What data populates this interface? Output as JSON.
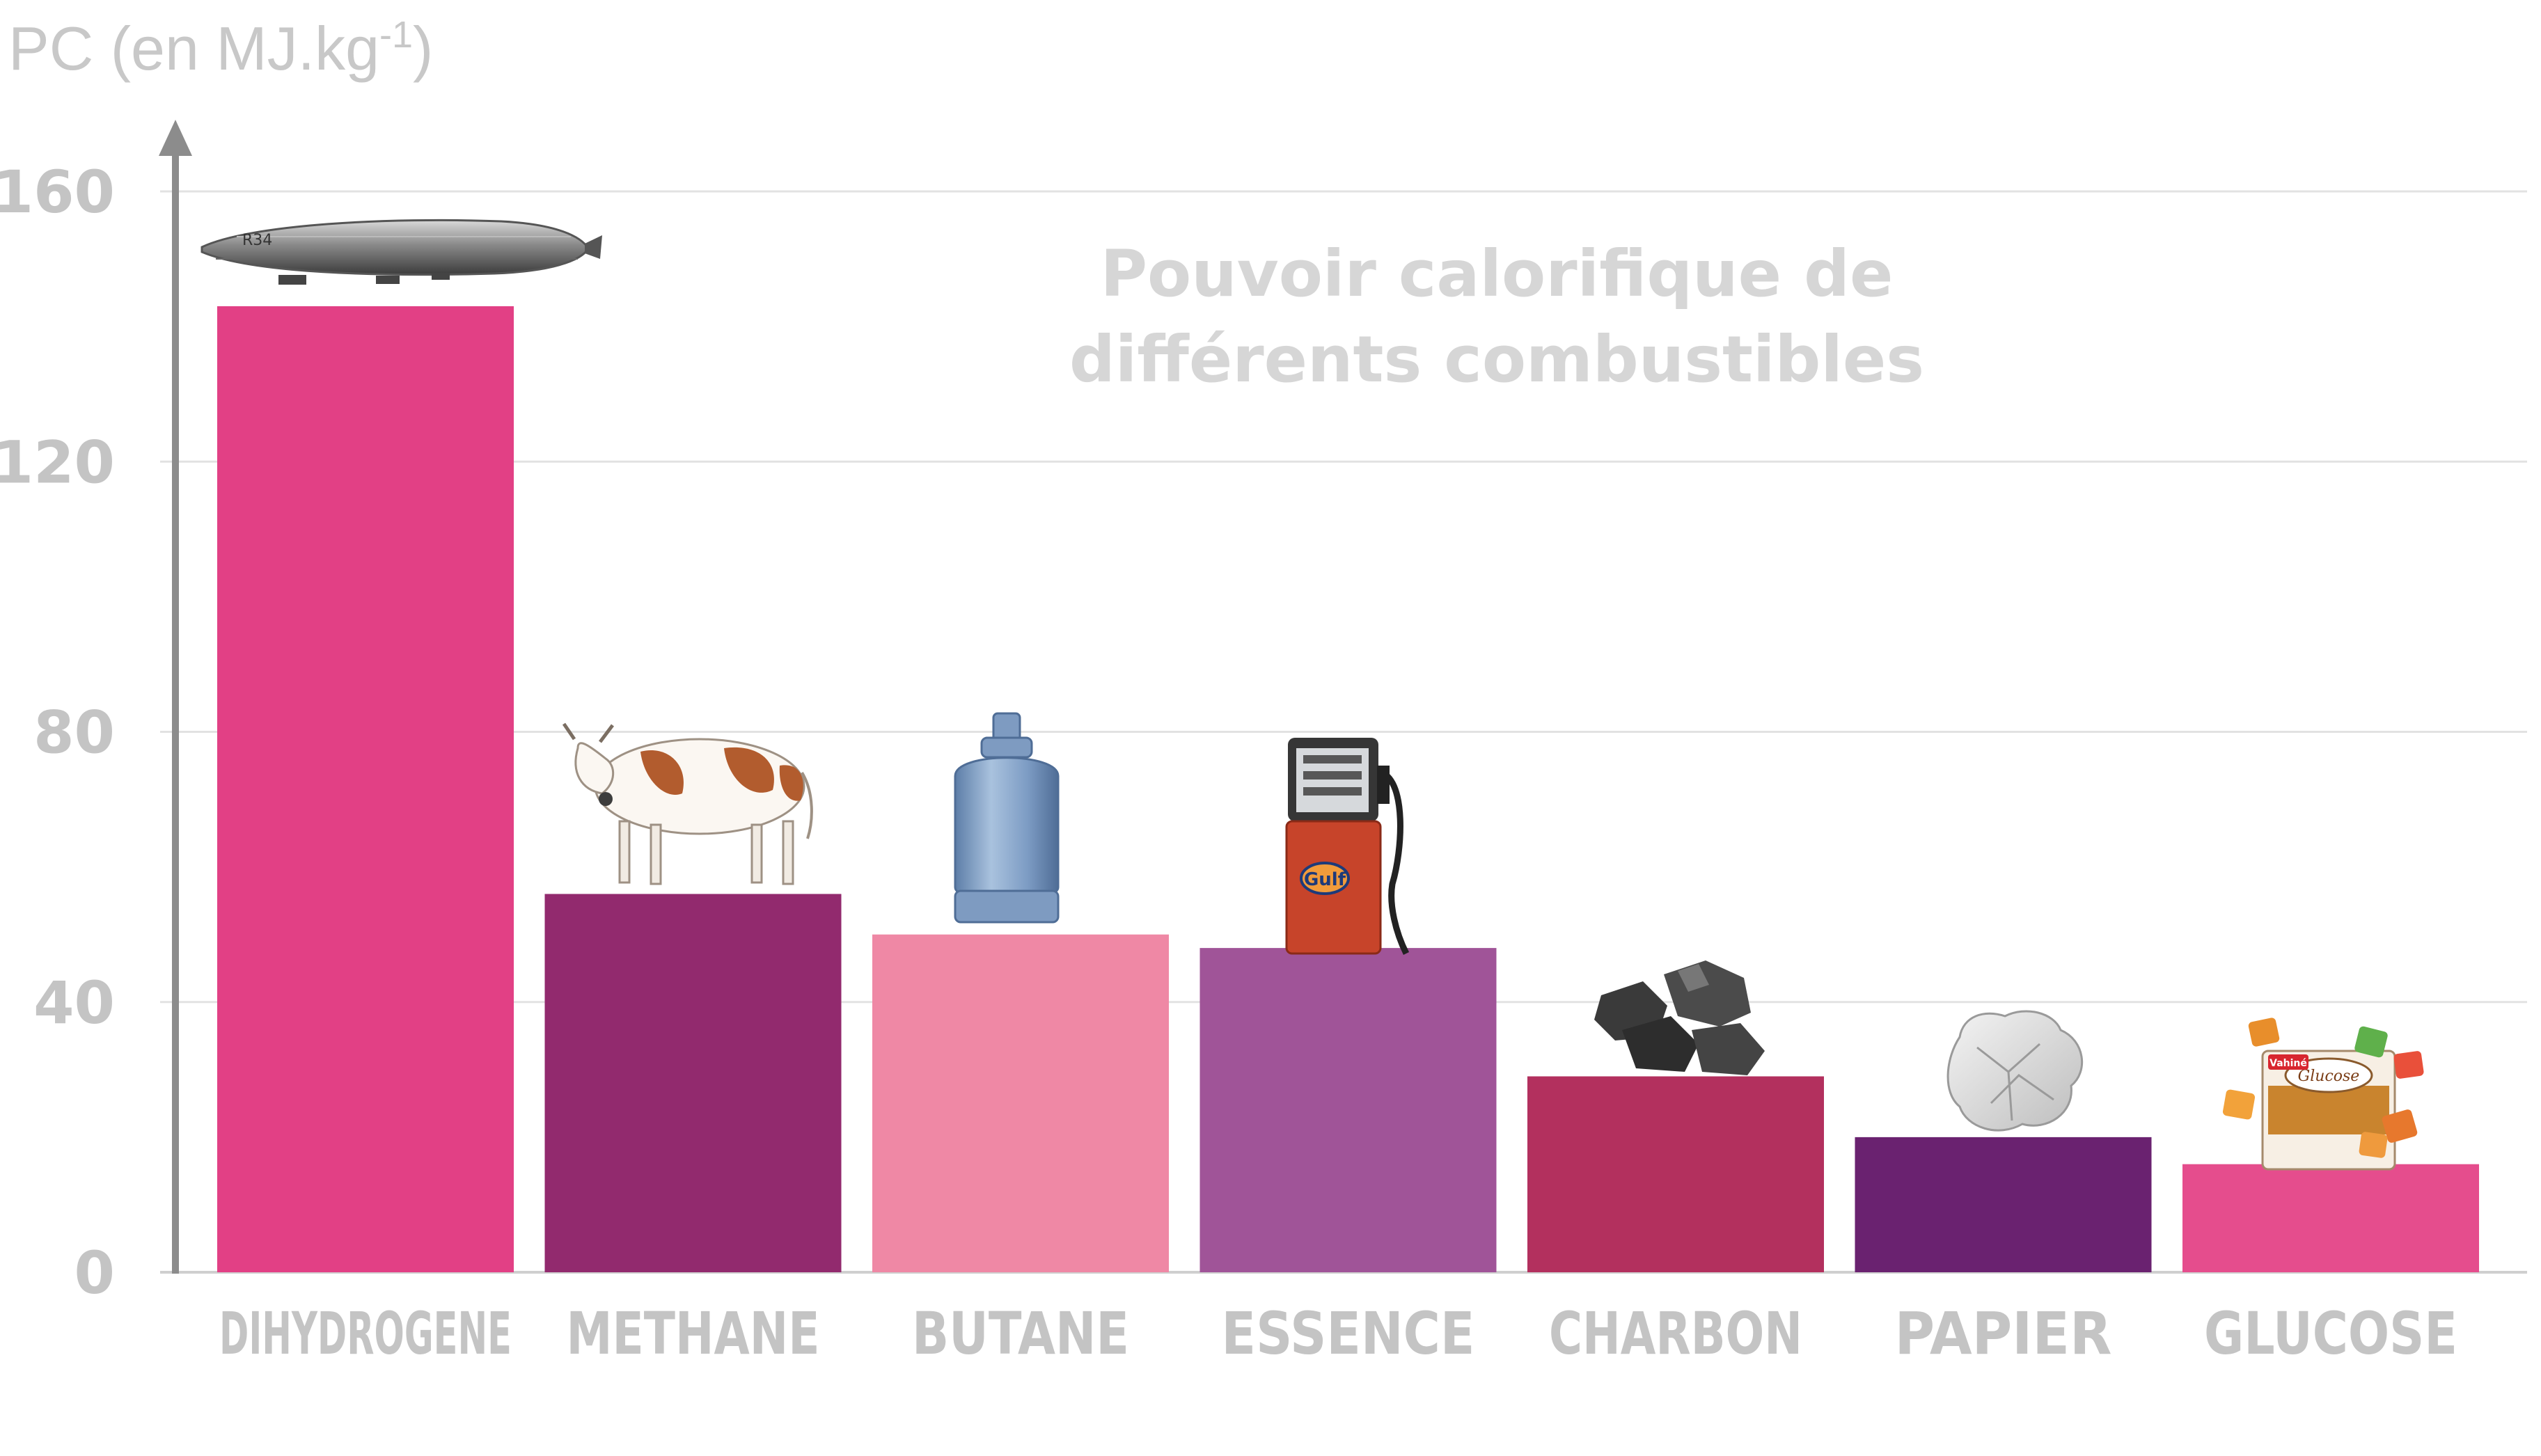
{
  "chart_data": {
    "type": "bar",
    "title_line1": "Pouvoir calorifique de",
    "title_line2": "différents combustibles",
    "ylabel_main": "PC (en MJ.kg",
    "ylabel_sup": "-1",
    "ylabel_end": ")",
    "ylim": [
      0,
      160
    ],
    "yticks": [
      "0",
      "40",
      "80",
      "120",
      "160"
    ],
    "grid": true,
    "categories": [
      "DIHYDROGENE",
      "METHANE",
      "BUTANE",
      "ESSENCE",
      "CHARBON",
      "PAPIER",
      "GLUCOSE"
    ],
    "values": [
      143,
      56,
      50,
      48,
      29,
      20,
      16
    ],
    "bar_colors": [
      "#e24085",
      "#922a6e",
      "#ef88a5",
      "#a05498",
      "#b3305e",
      "#6a2270",
      "#e54d8d"
    ],
    "icons": [
      "airship-icon",
      "cow-icon",
      "gas-cylinder-icon",
      "fuel-pump-icon",
      "coal-icon",
      "crumpled-paper-icon",
      "glucose-candy-icon"
    ],
    "icon_texts": {
      "airship": "R34",
      "pump": "Gulf",
      "glucose_logo": "Vahiné",
      "glucose_box": "Glucose"
    }
  }
}
